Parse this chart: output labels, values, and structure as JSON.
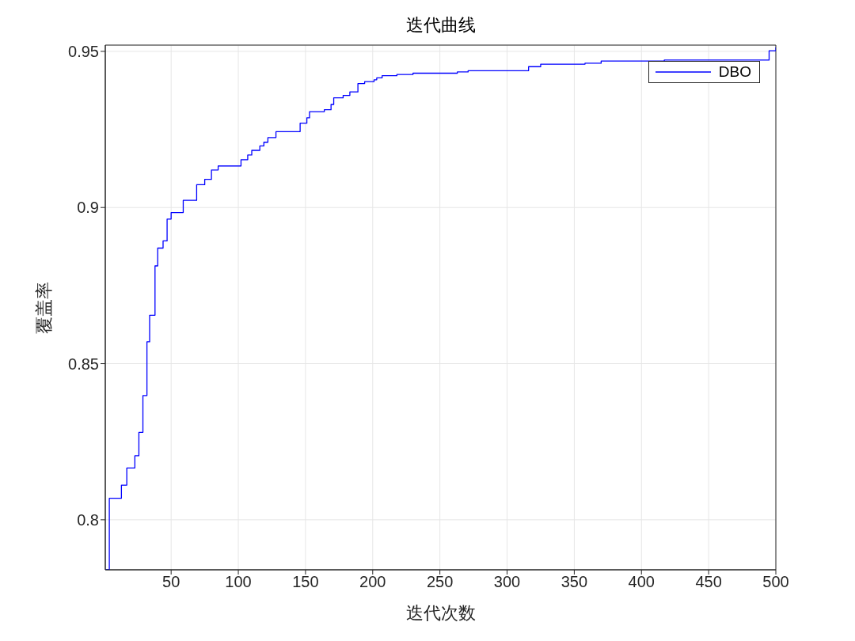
{
  "chart_data": {
    "type": "step",
    "title": "迭代曲线",
    "xlabel": "迭代次数",
    "ylabel": "覆盖率",
    "x": [
      1,
      4,
      13,
      17,
      23,
      26,
      29,
      32,
      34,
      38,
      40,
      44,
      47,
      50,
      59,
      69,
      75,
      80,
      85,
      102,
      107,
      110,
      116,
      119,
      122,
      128,
      146,
      151,
      153,
      164,
      169,
      171,
      178,
      183,
      189,
      194,
      201,
      203,
      207,
      218,
      230,
      263,
      271,
      316,
      325,
      358,
      370,
      417,
      495,
      500
    ],
    "series": [
      {
        "name": "DBO",
        "color": "#0000ff",
        "values": [
          0.784,
          0.8069,
          0.8111,
          0.8166,
          0.8205,
          0.828,
          0.8398,
          0.857,
          0.8655,
          0.8813,
          0.887,
          0.8893,
          0.8963,
          0.8984,
          0.9023,
          0.9073,
          0.909,
          0.912,
          0.9133,
          0.9153,
          0.9168,
          0.9183,
          0.9197,
          0.9209,
          0.9224,
          0.9243,
          0.927,
          0.9287,
          0.9307,
          0.9313,
          0.933,
          0.9351,
          0.9359,
          0.937,
          0.9397,
          0.9403,
          0.9409,
          0.9415,
          0.9422,
          0.9426,
          0.943,
          0.9434,
          0.9438,
          0.9451,
          0.9459,
          0.9462,
          0.9469,
          0.9472,
          0.9502,
          0.9513
        ]
      }
    ],
    "xlim": [
      1,
      500
    ],
    "xticks": [
      50,
      100,
      150,
      200,
      250,
      300,
      350,
      400,
      450,
      500
    ],
    "ylim": [
      0.784,
      0.952
    ],
    "yticks": [
      0.8,
      0.85,
      0.9,
      0.95
    ],
    "grid": true,
    "legend": "top right",
    "line_style": "solid",
    "marker": "none"
  }
}
